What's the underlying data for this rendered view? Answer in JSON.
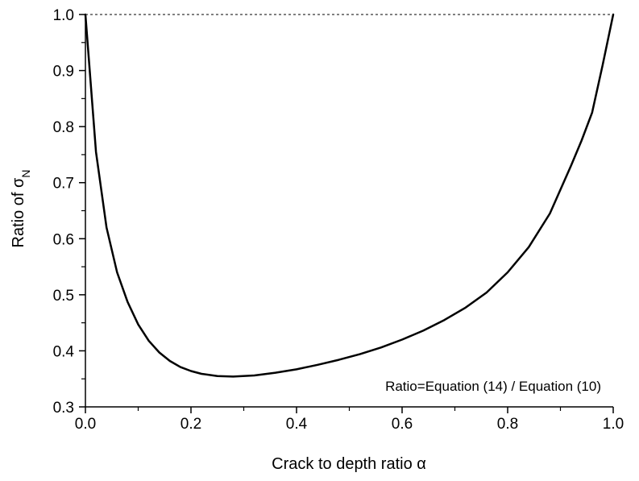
{
  "chart_data": {
    "type": "line",
    "title": "",
    "xlabel": "Crack to depth ratio α",
    "ylabel_main": "Ratio of σ",
    "ylabel_subscript": "N",
    "xlim": [
      0.0,
      1.0
    ],
    "ylim": [
      0.3,
      1.0
    ],
    "x_ticks": [
      0.0,
      0.2,
      0.4,
      0.6,
      0.8,
      1.0
    ],
    "x_tick_labels": [
      "0.0",
      "0.2",
      "0.4",
      "0.6",
      "0.8",
      "1.0"
    ],
    "y_ticks": [
      0.3,
      0.4,
      0.5,
      0.6,
      0.7,
      0.8,
      0.9,
      1.0
    ],
    "y_tick_labels": [
      "0.3",
      "0.4",
      "0.5",
      "0.6",
      "0.7",
      "0.8",
      "0.9",
      "1.0"
    ],
    "grid": false,
    "legend": "none",
    "annotation": "Ratio=Equation (14) / Equation (10)",
    "reference_line": {
      "y": 1.0,
      "style": "dashed"
    },
    "series": [
      {
        "x": [
          0.0,
          0.02,
          0.04,
          0.06,
          0.08,
          0.1,
          0.12,
          0.14,
          0.16,
          0.18,
          0.2,
          0.22,
          0.25,
          0.28,
          0.32,
          0.36,
          0.4,
          0.44,
          0.48,
          0.52,
          0.56,
          0.6,
          0.64,
          0.68,
          0.72,
          0.76,
          0.8,
          0.84,
          0.88,
          0.92,
          0.94,
          0.96,
          0.98,
          1.0
        ],
        "values": [
          1.0,
          0.755,
          0.62,
          0.54,
          0.487,
          0.447,
          0.418,
          0.397,
          0.382,
          0.371,
          0.364,
          0.359,
          0.355,
          0.354,
          0.356,
          0.361,
          0.367,
          0.375,
          0.384,
          0.394,
          0.406,
          0.42,
          0.436,
          0.455,
          0.477,
          0.504,
          0.54,
          0.585,
          0.645,
          0.73,
          0.775,
          0.825,
          0.91,
          1.0
        ]
      }
    ],
    "colors": {
      "line": "#000000",
      "axis": "#000000"
    }
  }
}
